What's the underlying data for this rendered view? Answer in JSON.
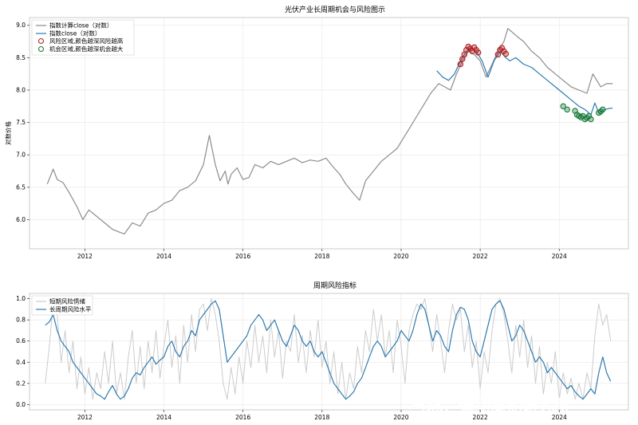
{
  "watermark": "雪球：律动周期研究所",
  "chart_data": [
    {
      "type": "line+scatter",
      "title": "光伏产业长周期机会与风险图示",
      "ylabel": "对数价格",
      "xlim": [
        2010.6,
        2025.75
      ],
      "ylim": [
        5.55,
        9.12
      ],
      "xticks": [
        2012,
        2014,
        2016,
        2018,
        2020,
        2022,
        2024
      ],
      "yticks": [
        6.0,
        6.5,
        7.0,
        7.5,
        8.0,
        8.5,
        9.0
      ],
      "ytick_labels": [
        "6.0",
        "6.5",
        "7.0",
        "7.5",
        "8.0",
        "8.5",
        "9.0"
      ],
      "grid": true,
      "legend_position": "upper-left",
      "colors": {
        "calc": "#8c8c8c",
        "close": "#2e7bb0",
        "risk": "#b22222",
        "opportunity": "#1a7a3a"
      },
      "series": [
        {
          "name": "指数计算close（对数）",
          "x": [
            2011.05,
            2011.2,
            2011.3,
            2011.45,
            2011.6,
            2011.8,
            2011.95,
            2012.1,
            2012.3,
            2012.5,
            2012.7,
            2012.9,
            2013.0,
            2013.2,
            2013.4,
            2013.6,
            2013.8,
            2014.0,
            2014.2,
            2014.4,
            2014.6,
            2014.8,
            2015.0,
            2015.15,
            2015.3,
            2015.42,
            2015.55,
            2015.62,
            2015.7,
            2015.85,
            2016.0,
            2016.15,
            2016.3,
            2016.5,
            2016.7,
            2016.9,
            2017.1,
            2017.3,
            2017.5,
            2017.7,
            2017.9,
            2018.1,
            2018.3,
            2018.45,
            2018.6,
            2018.8,
            2018.95,
            2019.1,
            2019.3,
            2019.5,
            2019.7,
            2019.9,
            2020.1,
            2020.25,
            2020.4,
            2020.6,
            2020.75,
            2020.95,
            2021.1,
            2021.25,
            2021.4,
            2021.55,
            2021.7,
            2021.85,
            2022.0,
            2022.15,
            2022.3,
            2022.45,
            2022.6,
            2022.7,
            2022.8,
            2022.95,
            2023.1,
            2023.3,
            2023.5,
            2023.7,
            2023.9,
            2024.1,
            2024.3,
            2024.5,
            2024.7,
            2024.85,
            2024.95,
            2025.05,
            2025.2,
            2025.35
          ],
          "values": [
            6.55,
            6.78,
            6.62,
            6.57,
            6.42,
            6.2,
            6.0,
            6.15,
            6.05,
            5.95,
            5.85,
            5.8,
            5.78,
            5.95,
            5.9,
            6.1,
            6.15,
            6.25,
            6.3,
            6.45,
            6.5,
            6.6,
            6.85,
            7.3,
            6.85,
            6.6,
            6.75,
            6.55,
            6.7,
            6.8,
            6.62,
            6.65,
            6.85,
            6.8,
            6.9,
            6.85,
            6.9,
            6.95,
            6.88,
            6.92,
            6.9,
            6.95,
            6.8,
            6.7,
            6.55,
            6.4,
            6.3,
            6.6,
            6.75,
            6.9,
            7.0,
            7.1,
            7.3,
            7.45,
            7.6,
            7.8,
            7.95,
            8.1,
            8.05,
            8.0,
            8.25,
            8.45,
            8.6,
            8.55,
            8.45,
            8.2,
            8.4,
            8.6,
            8.75,
            8.95,
            8.9,
            8.82,
            8.75,
            8.6,
            8.5,
            8.35,
            8.25,
            8.15,
            8.05,
            8.0,
            7.95,
            8.25,
            8.15,
            8.05,
            8.1,
            8.1
          ]
        },
        {
          "name": "指数close（对数）",
          "x": [
            2020.9,
            2021.05,
            2021.2,
            2021.35,
            2021.5,
            2021.65,
            2021.8,
            2021.95,
            2022.05,
            2022.2,
            2022.35,
            2022.5,
            2022.65,
            2022.75,
            2022.9,
            2023.1,
            2023.3,
            2023.5,
            2023.7,
            2023.9,
            2024.1,
            2024.3,
            2024.5,
            2024.65,
            2024.8,
            2024.9,
            2025.0,
            2025.15,
            2025.3,
            2025.35
          ],
          "values": [
            8.3,
            8.2,
            8.15,
            8.25,
            8.45,
            8.6,
            8.65,
            8.55,
            8.45,
            8.2,
            8.45,
            8.6,
            8.5,
            8.45,
            8.5,
            8.4,
            8.35,
            8.25,
            8.15,
            8.05,
            7.95,
            7.85,
            7.75,
            7.7,
            7.62,
            7.8,
            7.65,
            7.7,
            7.72,
            7.72
          ]
        },
        {
          "name": "风险区域,颜色越深风险越高",
          "kind": "scatter",
          "x": [
            2021.5,
            2021.55,
            2021.6,
            2021.65,
            2021.7,
            2021.75,
            2021.8,
            2021.85,
            2021.9,
            2021.95,
            2022.45,
            2022.5,
            2022.55,
            2022.6,
            2022.65
          ],
          "values": [
            8.4,
            8.48,
            8.55,
            8.62,
            8.67,
            8.64,
            8.6,
            8.66,
            8.62,
            8.58,
            8.55,
            8.62,
            8.65,
            8.6,
            8.56
          ]
        },
        {
          "name": "机会区域,颜色越深机会越大",
          "kind": "scatter",
          "x": [
            2024.1,
            2024.2,
            2024.4,
            2024.45,
            2024.5,
            2024.55,
            2024.6,
            2024.65,
            2024.7,
            2024.75,
            2024.8,
            2025.0,
            2025.05,
            2025.1
          ],
          "values": [
            7.75,
            7.7,
            7.68,
            7.62,
            7.6,
            7.58,
            7.6,
            7.55,
            7.57,
            7.6,
            7.55,
            7.65,
            7.67,
            7.7
          ]
        }
      ]
    },
    {
      "type": "line",
      "title": "周期风险指标",
      "xlim": [
        2010.6,
        2025.75
      ],
      "ylim": [
        -0.05,
        1.05
      ],
      "xticks": [
        2012,
        2014,
        2016,
        2018,
        2020,
        2022,
        2024
      ],
      "yticks": [
        0.0,
        0.2,
        0.4,
        0.6,
        0.8,
        1.0
      ],
      "ytick_labels": [
        "0.0",
        "0.2",
        "0.4",
        "0.6",
        "0.8",
        "1.0"
      ],
      "grid": true,
      "legend_position": "upper-left",
      "colors": {
        "short": "#cccccc",
        "long": "#2e7bb0"
      },
      "series": [
        {
          "name": "短期风险情绪",
          "x": [
            2011.0,
            2011.1,
            2011.2,
            2011.3,
            2011.4,
            2011.5,
            2011.6,
            2011.7,
            2011.8,
            2011.9,
            2012.0,
            2012.1,
            2012.2,
            2012.3,
            2012.4,
            2012.5,
            2012.6,
            2012.7,
            2012.8,
            2012.9,
            2013.0,
            2013.1,
            2013.2,
            2013.3,
            2013.4,
            2013.5,
            2013.6,
            2013.7,
            2013.8,
            2013.9,
            2014.0,
            2014.1,
            2014.2,
            2014.3,
            2014.4,
            2014.5,
            2014.6,
            2014.7,
            2014.8,
            2014.9,
            2015.0,
            2015.1,
            2015.2,
            2015.3,
            2015.4,
            2015.5,
            2015.6,
            2015.7,
            2015.8,
            2015.9,
            2016.0,
            2016.1,
            2016.2,
            2016.3,
            2016.4,
            2016.5,
            2016.6,
            2016.7,
            2016.8,
            2016.9,
            2017.0,
            2017.1,
            2017.2,
            2017.3,
            2017.4,
            2017.5,
            2017.6,
            2017.7,
            2017.8,
            2017.9,
            2018.0,
            2018.1,
            2018.2,
            2018.3,
            2018.4,
            2018.5,
            2018.6,
            2018.7,
            2018.8,
            2018.9,
            2019.0,
            2019.1,
            2019.2,
            2019.3,
            2019.4,
            2019.5,
            2019.6,
            2019.7,
            2019.8,
            2019.9,
            2020.0,
            2020.1,
            2020.2,
            2020.3,
            2020.4,
            2020.5,
            2020.6,
            2020.7,
            2020.8,
            2020.9,
            2021.0,
            2021.1,
            2021.2,
            2021.3,
            2021.4,
            2021.5,
            2021.6,
            2021.7,
            2021.8,
            2021.9,
            2022.0,
            2022.1,
            2022.2,
            2022.3,
            2022.4,
            2022.5,
            2022.6,
            2022.7,
            2022.8,
            2022.9,
            2023.0,
            2023.1,
            2023.2,
            2023.3,
            2023.4,
            2023.5,
            2023.6,
            2023.7,
            2023.8,
            2023.9,
            2024.0,
            2024.1,
            2024.2,
            2024.3,
            2024.4,
            2024.5,
            2024.6,
            2024.7,
            2024.8,
            2024.9,
            2025.0,
            2025.1,
            2025.2,
            2025.3
          ],
          "values": [
            0.2,
            0.55,
            0.95,
            0.85,
            0.4,
            0.7,
            0.3,
            0.6,
            0.15,
            0.45,
            0.1,
            0.35,
            0.05,
            0.3,
            0.15,
            0.5,
            0.2,
            0.6,
            0.1,
            0.3,
            0.05,
            0.45,
            0.7,
            0.2,
            0.55,
            0.15,
            0.6,
            0.3,
            0.7,
            0.25,
            0.55,
            0.8,
            0.35,
            0.65,
            0.2,
            0.75,
            0.4,
            0.85,
            0.5,
            0.9,
            0.95,
            0.7,
            1.0,
            0.85,
            0.6,
            0.2,
            0.05,
            0.35,
            0.1,
            0.45,
            0.2,
            0.6,
            0.35,
            0.75,
            0.4,
            0.65,
            0.3,
            0.8,
            0.45,
            0.7,
            0.25,
            0.6,
            0.5,
            0.85,
            0.4,
            0.65,
            0.3,
            0.7,
            0.45,
            0.8,
            0.35,
            0.6,
            0.2,
            0.5,
            0.1,
            0.4,
            0.05,
            0.3,
            0.15,
            0.55,
            0.3,
            0.7,
            0.5,
            0.9,
            0.6,
            0.85,
            0.45,
            0.7,
            0.3,
            0.8,
            0.55,
            0.2,
            0.7,
            0.85,
            0.95,
            0.9,
            1.0,
            0.75,
            0.5,
            0.85,
            0.6,
            0.3,
            0.7,
            0.95,
            0.8,
            0.9,
            0.5,
            0.75,
            0.35,
            0.6,
            0.15,
            0.5,
            0.3,
            0.7,
            0.95,
            1.0,
            0.85,
            0.6,
            0.3,
            0.75,
            0.45,
            0.8,
            0.35,
            0.65,
            0.2,
            0.55,
            0.1,
            0.4,
            0.2,
            0.5,
            0.05,
            0.3,
            0.1,
            0.25,
            0.05,
            0.2,
            0.05,
            0.3,
            0.15,
            0.65,
            0.95,
            0.75,
            0.85,
            0.6
          ]
        },
        {
          "name": "长周期风险水平",
          "x": [
            2011.0,
            2011.1,
            2011.2,
            2011.3,
            2011.4,
            2011.5,
            2011.6,
            2011.7,
            2011.8,
            2011.9,
            2012.0,
            2012.1,
            2012.2,
            2012.3,
            2012.4,
            2012.5,
            2012.6,
            2012.7,
            2012.8,
            2012.9,
            2013.0,
            2013.1,
            2013.2,
            2013.3,
            2013.4,
            2013.5,
            2013.6,
            2013.7,
            2013.8,
            2013.9,
            2014.0,
            2014.1,
            2014.2,
            2014.3,
            2014.4,
            2014.5,
            2014.6,
            2014.7,
            2014.8,
            2014.9,
            2015.0,
            2015.1,
            2015.2,
            2015.3,
            2015.4,
            2015.5,
            2015.6,
            2015.7,
            2015.8,
            2015.9,
            2016.0,
            2016.1,
            2016.2,
            2016.3,
            2016.4,
            2016.5,
            2016.6,
            2016.7,
            2016.8,
            2016.9,
            2017.0,
            2017.1,
            2017.2,
            2017.3,
            2017.4,
            2017.5,
            2017.6,
            2017.7,
            2017.8,
            2017.9,
            2018.0,
            2018.1,
            2018.2,
            2018.3,
            2018.4,
            2018.5,
            2018.6,
            2018.7,
            2018.8,
            2018.9,
            2019.0,
            2019.1,
            2019.2,
            2019.3,
            2019.4,
            2019.5,
            2019.6,
            2019.7,
            2019.8,
            2019.9,
            2020.0,
            2020.1,
            2020.2,
            2020.3,
            2020.4,
            2020.5,
            2020.6,
            2020.7,
            2020.8,
            2020.9,
            2021.0,
            2021.1,
            2021.2,
            2021.3,
            2021.4,
            2021.5,
            2021.6,
            2021.7,
            2021.8,
            2021.9,
            2022.0,
            2022.1,
            2022.2,
            2022.3,
            2022.4,
            2022.5,
            2022.6,
            2022.7,
            2022.8,
            2022.9,
            2023.0,
            2023.1,
            2023.2,
            2023.3,
            2023.4,
            2023.5,
            2023.6,
            2023.7,
            2023.8,
            2023.9,
            2024.0,
            2024.1,
            2024.2,
            2024.3,
            2024.4,
            2024.5,
            2024.6,
            2024.7,
            2024.8,
            2024.9,
            2025.0,
            2025.1,
            2025.2,
            2025.3
          ],
          "values": [
            0.75,
            0.78,
            0.85,
            0.7,
            0.6,
            0.55,
            0.5,
            0.4,
            0.35,
            0.3,
            0.25,
            0.2,
            0.15,
            0.1,
            0.08,
            0.05,
            0.12,
            0.18,
            0.1,
            0.05,
            0.08,
            0.15,
            0.25,
            0.3,
            0.28,
            0.35,
            0.4,
            0.45,
            0.38,
            0.42,
            0.45,
            0.55,
            0.6,
            0.5,
            0.45,
            0.55,
            0.6,
            0.7,
            0.65,
            0.8,
            0.85,
            0.9,
            0.95,
            0.98,
            0.9,
            0.65,
            0.4,
            0.45,
            0.5,
            0.55,
            0.6,
            0.65,
            0.75,
            0.8,
            0.85,
            0.8,
            0.7,
            0.75,
            0.8,
            0.7,
            0.6,
            0.55,
            0.65,
            0.75,
            0.7,
            0.6,
            0.55,
            0.6,
            0.5,
            0.45,
            0.5,
            0.4,
            0.3,
            0.2,
            0.15,
            0.1,
            0.05,
            0.08,
            0.12,
            0.2,
            0.25,
            0.35,
            0.45,
            0.55,
            0.6,
            0.55,
            0.45,
            0.5,
            0.55,
            0.6,
            0.7,
            0.65,
            0.6,
            0.7,
            0.85,
            0.95,
            0.9,
            0.75,
            0.6,
            0.7,
            0.65,
            0.55,
            0.5,
            0.7,
            0.85,
            0.92,
            0.9,
            0.8,
            0.6,
            0.5,
            0.45,
            0.6,
            0.75,
            0.9,
            0.95,
            0.98,
            0.9,
            0.75,
            0.6,
            0.65,
            0.75,
            0.7,
            0.6,
            0.5,
            0.4,
            0.45,
            0.4,
            0.3,
            0.35,
            0.3,
            0.25,
            0.2,
            0.15,
            0.18,
            0.12,
            0.08,
            0.05,
            0.1,
            0.15,
            0.1,
            0.3,
            0.45,
            0.3,
            0.22
          ]
        }
      ]
    }
  ]
}
